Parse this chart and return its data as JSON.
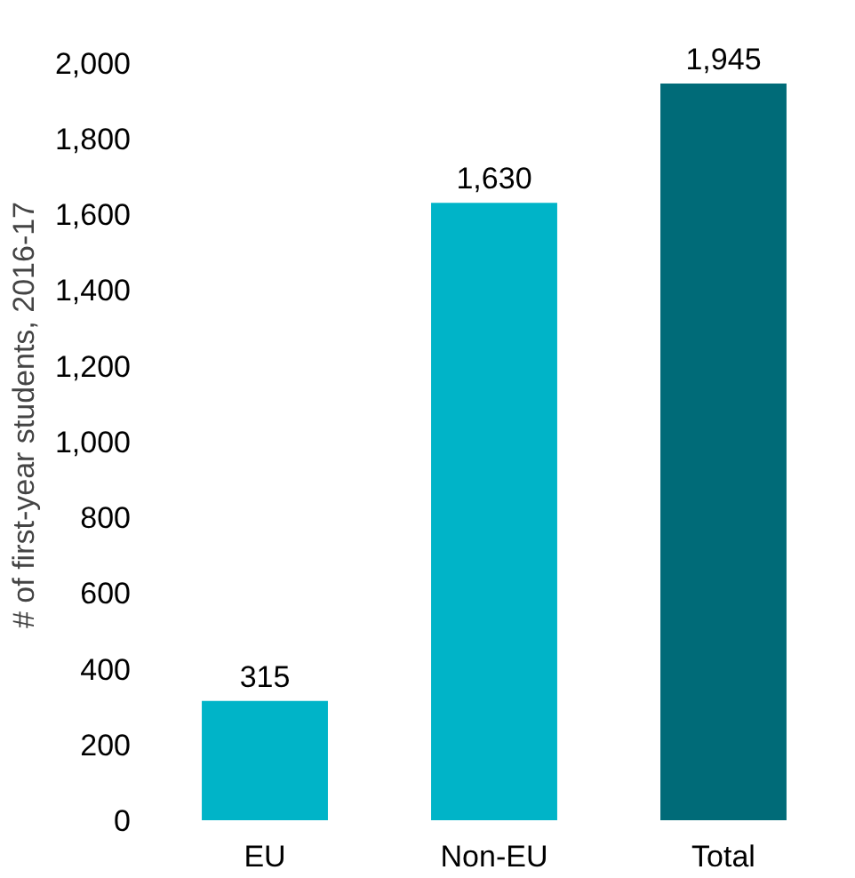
{
  "chart_data": {
    "type": "bar",
    "ylabel": "# of first-year students, 2016-17",
    "categories": [
      "EU",
      "Non-EU",
      "Total"
    ],
    "values": [
      315,
      1630,
      1945
    ],
    "colors": [
      "#00b4c8",
      "#00b4c8",
      "#006b78"
    ],
    "value_labels": [
      "315",
      "1,630",
      "1,945"
    ],
    "ylim": [
      0,
      2000
    ],
    "yticks": [
      {
        "value": 0,
        "label": "0"
      },
      {
        "value": 200,
        "label": "200"
      },
      {
        "value": 400,
        "label": "400"
      },
      {
        "value": 600,
        "label": "600"
      },
      {
        "value": 800,
        "label": "800"
      },
      {
        "value": 1000,
        "label": "1,000"
      },
      {
        "value": 1200,
        "label": "1,200"
      },
      {
        "value": 1400,
        "label": "1,400"
      },
      {
        "value": 1600,
        "label": "1,600"
      },
      {
        "value": 1800,
        "label": "1,800"
      },
      {
        "value": 2000,
        "label": "2,000"
      }
    ],
    "grid": false
  }
}
